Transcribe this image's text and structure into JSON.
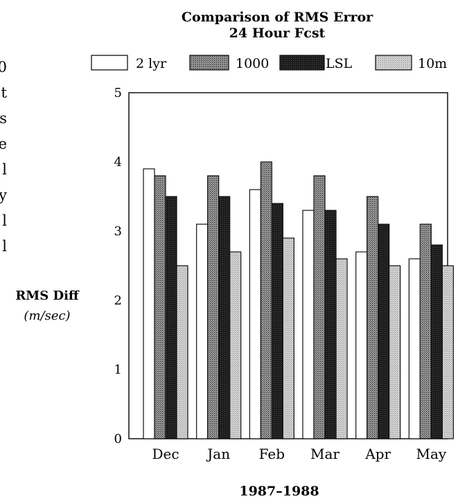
{
  "chart_data": {
    "type": "bar",
    "title": "Comparison of RMS Error",
    "subtitle": "24 Hour Fcst",
    "ylabel": "RMS Diff",
    "yunit": "(m/sec)",
    "xlabel": "1987–1988",
    "categories": [
      "Dec",
      "Jan",
      "Feb",
      "Mar",
      "Apr",
      "May"
    ],
    "ylim": [
      0,
      5
    ],
    "yticks": [
      "0",
      "1",
      "2",
      "3",
      "4",
      "5"
    ],
    "legend_position": "top",
    "grid": false,
    "series": [
      {
        "name": "2 lyr",
        "values": [
          3.9,
          3.1,
          3.6,
          3.3,
          2.7,
          2.6
        ]
      },
      {
        "name": "1000",
        "values": [
          3.8,
          3.8,
          4.0,
          3.8,
          3.5,
          3.1
        ]
      },
      {
        "name": "LSL",
        "values": [
          3.5,
          3.5,
          3.4,
          3.3,
          3.1,
          2.8
        ]
      },
      {
        "name": "10m",
        "values": [
          2.5,
          2.7,
          2.9,
          2.6,
          2.5,
          2.5
        ]
      }
    ]
  },
  "margin_text": [
    "0",
    "t",
    "s",
    "e",
    "l",
    "y",
    "l",
    "l"
  ]
}
